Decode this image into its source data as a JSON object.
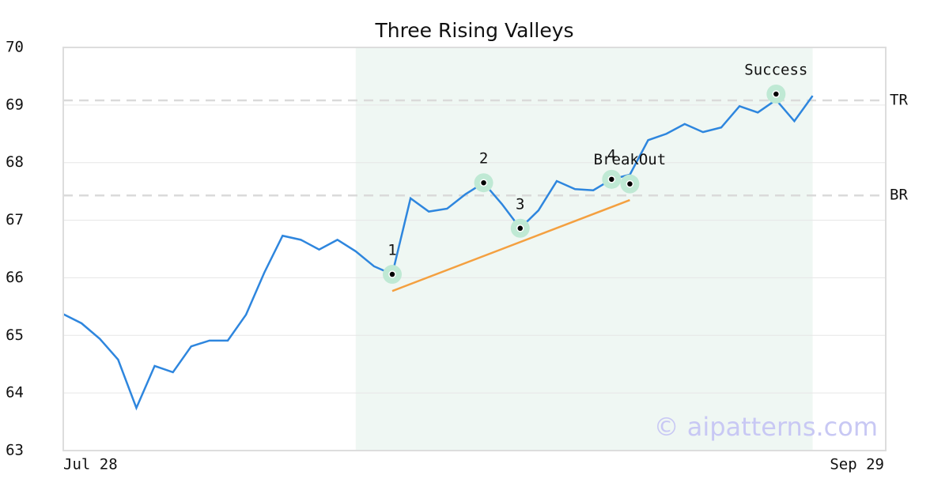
{
  "chart_data": {
    "type": "line",
    "title": "Three Rising Valleys",
    "x": [
      0,
      1,
      2,
      3,
      4,
      5,
      6,
      7,
      8,
      9,
      10,
      11,
      12,
      13,
      14,
      15,
      16,
      17,
      18,
      19,
      20,
      21,
      22,
      23,
      24,
      25,
      26,
      27,
      28,
      29,
      30,
      31,
      32,
      33,
      34,
      35,
      36,
      37,
      38,
      39,
      40,
      41
    ],
    "values": [
      65.37,
      65.21,
      64.94,
      64.58,
      63.74,
      64.47,
      64.36,
      64.81,
      64.91,
      64.91,
      65.36,
      66.09,
      66.73,
      66.66,
      66.49,
      66.66,
      66.46,
      66.2,
      66.06,
      67.38,
      67.15,
      67.2,
      67.45,
      67.65,
      67.28,
      66.86,
      67.17,
      67.68,
      67.54,
      67.52,
      67.71,
      67.79,
      68.39,
      68.5,
      68.67,
      68.53,
      68.61,
      68.98,
      68.87,
      69.09,
      68.72,
      69.16
    ],
    "color": "#2e86de",
    "xlim": [
      0,
      45
    ],
    "xticks": [
      {
        "value": 0,
        "label": "Jul 28"
      },
      {
        "value": 45,
        "label": "Sep 29"
      }
    ],
    "ylim": [
      63,
      70
    ],
    "yticks": [
      63,
      64,
      65,
      66,
      67,
      68,
      69,
      70
    ],
    "grid": true,
    "highlight": [
      16,
      41
    ],
    "levels": [
      {
        "label": "TR",
        "value": 69.08
      },
      {
        "label": "BR",
        "value": 67.43
      }
    ],
    "trendline": {
      "x": [
        18,
        31
      ],
      "y": [
        65.77,
        67.35
      ],
      "color": "#f4a040"
    },
    "annotations": [
      {
        "label": "1",
        "x": 18,
        "y": 66.06
      },
      {
        "label": "2",
        "x": 23,
        "y": 67.65
      },
      {
        "label": "3",
        "x": 25,
        "y": 66.86
      },
      {
        "label": "4",
        "x": 30,
        "y": 67.71
      },
      {
        "label": "BreakOut",
        "x": 31,
        "y": 67.63
      },
      {
        "label": "Success",
        "x": 39,
        "y": 69.19
      }
    ],
    "watermark": "© aipatterns.com"
  }
}
